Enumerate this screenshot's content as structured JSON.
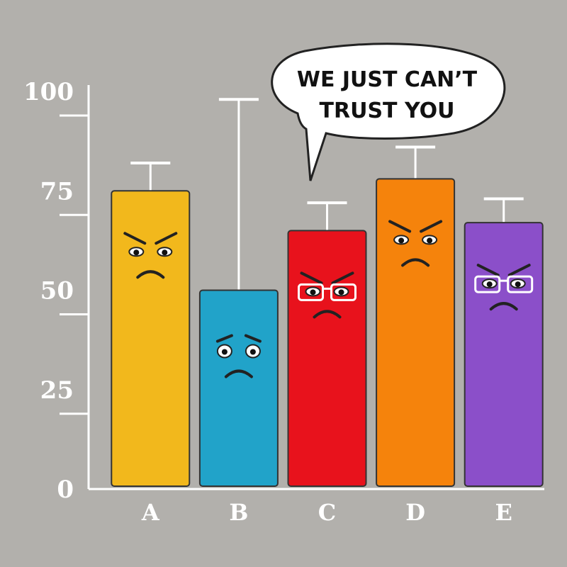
{
  "chart_data": {
    "type": "bar",
    "annotation": [
      "WE JUST CAN’T",
      "TRUST YOU"
    ],
    "categories": [
      "A",
      "B",
      "C",
      "D",
      "E"
    ],
    "values": [
      75,
      50,
      65,
      78,
      67
    ],
    "errors": [
      7,
      48,
      7,
      8,
      6
    ],
    "colors": [
      "#f2b81c",
      "#21a3c9",
      "#e8121c",
      "#f5830c",
      "#8b4fc9"
    ],
    "ylim": [
      0,
      100
    ],
    "yticks": [
      0,
      25,
      50,
      75,
      100
    ]
  }
}
